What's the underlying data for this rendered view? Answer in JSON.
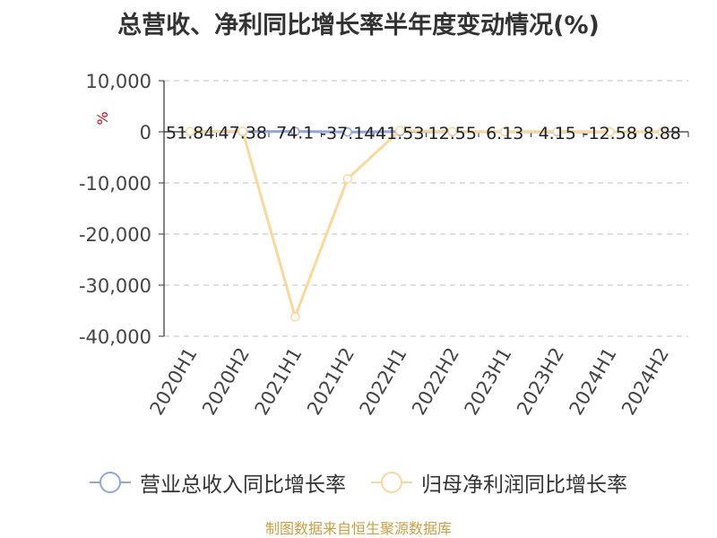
{
  "title": "总营收、净利同比增长率半年度变动情况(%)",
  "source": "制图数据来自恒生聚源数据库",
  "colors": {
    "revenue": "#8ea6d8",
    "profit": "#f9d89a",
    "axis": "#333333",
    "grid": "#cccccc",
    "unit": "#d0021b",
    "source": "#c8a043"
  },
  "chart_data": {
    "type": "line",
    "title": "总营收、净利同比增长率半年度变动情况(%)",
    "ylabel": "%",
    "xlabel": "",
    "categories": [
      "2020H1",
      "2020H2",
      "2021H1",
      "2021H2",
      "2022H1",
      "2022H2",
      "2023H1",
      "2023H2",
      "2024H1",
      "2024H2"
    ],
    "ylim": [
      -40000,
      10000
    ],
    "yticks": [
      10000,
      0,
      -10000,
      -20000,
      -30000,
      -40000
    ],
    "ytick_labels": [
      "10,000",
      "0",
      "-10,000",
      "-20,000",
      "-30,000",
      "-40,000"
    ],
    "grid": true,
    "legend_position": "bottom",
    "series": [
      {
        "name": "营业总收入同比增长率",
        "values": [
          51.84,
          47.38,
          74.1,
          -37.14,
          41.53,
          12.55,
          6.13,
          4.15,
          -12.58,
          8.88
        ],
        "labels": [
          "51.84",
          "47.38",
          "74.1",
          "-37.14",
          "41.53",
          "12.55",
          "6.13",
          "4.15",
          "-12.58",
          "8.88"
        ]
      },
      {
        "name": "归母净利润同比增长率",
        "values": [
          80,
          120,
          -36200,
          -9200,
          250,
          60,
          30,
          90,
          10,
          20
        ]
      }
    ]
  }
}
